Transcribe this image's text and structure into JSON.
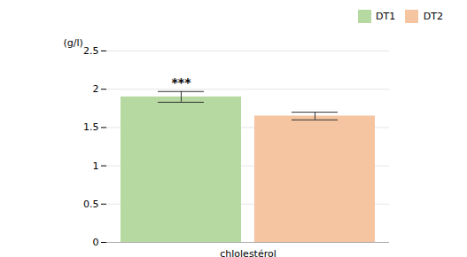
{
  "chart_data": {
    "type": "bar",
    "categories": [
      "chlolestérol"
    ],
    "series": [
      {
        "name": "DT1",
        "color": "#b5d9a0",
        "values": [
          1.9
        ],
        "errors": [
          0.07
        ]
      },
      {
        "name": "DT2",
        "color": "#f5c4a0",
        "values": [
          1.65
        ],
        "errors": [
          0.05
        ]
      }
    ],
    "ylabel": "(g/l)",
    "ylim": [
      0,
      2.5
    ],
    "yticks": [
      0,
      0.5,
      1,
      1.5,
      2,
      2.5
    ],
    "grid": true,
    "legend": "upper right",
    "annotations": [
      {
        "text": "***",
        "series": "DT1",
        "category": "chlolestérol"
      }
    ]
  }
}
